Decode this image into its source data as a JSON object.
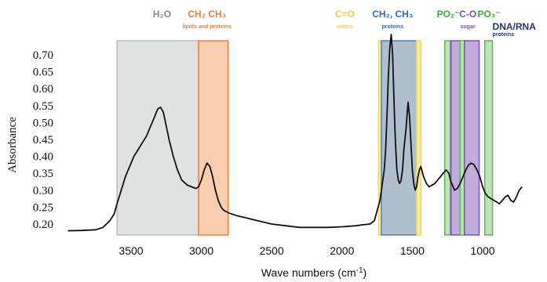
{
  "chart_data": {
    "type": "line",
    "title": "",
    "xlabel": "Wave numbers  (cm",
    "xlabel_sup": "-1",
    "xlabel_suffix": ")",
    "ylabel": "Absorbance",
    "xlim": [
      4000,
      700
    ],
    "ylim": [
      0.17,
      0.74
    ],
    "x_ticks": [
      3500,
      3000,
      2500,
      2000,
      1500,
      1000
    ],
    "y_ticks": [
      0.2,
      0.25,
      0.3,
      0.35,
      0.4,
      0.45,
      0.5,
      0.55,
      0.6,
      0.65,
      0.7
    ],
    "grid": false,
    "series": [
      {
        "x": [
          3950,
          3850,
          3750,
          3700,
          3650,
          3620,
          3600,
          3570,
          3540,
          3510,
          3480,
          3450,
          3420,
          3390,
          3360,
          3330,
          3310,
          3290,
          3270,
          3250,
          3230,
          3200,
          3170,
          3140,
          3100,
          3070,
          3040,
          3020,
          3000,
          2980,
          2960,
          2940,
          2920,
          2900,
          2880,
          2860,
          2840,
          2800,
          2750,
          2700,
          2600,
          2500,
          2400,
          2300,
          2200,
          2100,
          2000,
          1900,
          1850,
          1800,
          1770,
          1750,
          1730,
          1720,
          1710,
          1700,
          1690,
          1680,
          1670,
          1660,
          1650,
          1640,
          1630,
          1620,
          1610,
          1600,
          1590,
          1580,
          1570,
          1560,
          1545,
          1530,
          1520,
          1510,
          1500,
          1490,
          1480,
          1470,
          1460,
          1450,
          1440,
          1420,
          1400,
          1380,
          1360,
          1340,
          1320,
          1300,
          1280,
          1260,
          1240,
          1230,
          1220,
          1210,
          1200,
          1180,
          1160,
          1140,
          1120,
          1100,
          1080,
          1060,
          1040,
          1020,
          1000,
          980,
          960,
          940,
          920,
          900,
          880,
          860,
          840,
          820,
          800,
          780,
          760,
          740,
          720
        ],
        "y": [
          0.18,
          0.181,
          0.183,
          0.19,
          0.21,
          0.23,
          0.26,
          0.3,
          0.34,
          0.37,
          0.4,
          0.42,
          0.44,
          0.46,
          0.49,
          0.52,
          0.54,
          0.545,
          0.53,
          0.49,
          0.45,
          0.4,
          0.36,
          0.33,
          0.315,
          0.31,
          0.305,
          0.31,
          0.33,
          0.36,
          0.38,
          0.37,
          0.34,
          0.3,
          0.27,
          0.25,
          0.24,
          0.232,
          0.225,
          0.22,
          0.21,
          0.2,
          0.195,
          0.19,
          0.19,
          0.19,
          0.192,
          0.195,
          0.198,
          0.2,
          0.21,
          0.24,
          0.27,
          0.3,
          0.33,
          0.36,
          0.42,
          0.52,
          0.64,
          0.72,
          0.76,
          0.7,
          0.56,
          0.44,
          0.36,
          0.33,
          0.32,
          0.33,
          0.36,
          0.42,
          0.48,
          0.56,
          0.52,
          0.44,
          0.36,
          0.32,
          0.3,
          0.31,
          0.34,
          0.36,
          0.37,
          0.34,
          0.32,
          0.31,
          0.315,
          0.32,
          0.33,
          0.34,
          0.35,
          0.36,
          0.35,
          0.33,
          0.32,
          0.31,
          0.3,
          0.305,
          0.32,
          0.34,
          0.36,
          0.375,
          0.38,
          0.375,
          0.36,
          0.34,
          0.31,
          0.29,
          0.28,
          0.275,
          0.27,
          0.265,
          0.26,
          0.27,
          0.28,
          0.285,
          0.27,
          0.265,
          0.28,
          0.3,
          0.31
        ]
      }
    ],
    "bands": [
      {
        "from": 3600,
        "to": 3020,
        "color": "#dcdfdd",
        "border": "#b8bcba"
      },
      {
        "from": 3020,
        "to": 2810,
        "color": "#f9c8a6",
        "border": "#ef7e3c"
      },
      {
        "from": 1740,
        "to": 1720,
        "color": "#f6eca0",
        "border": "#ecd66a"
      },
      {
        "from": 1720,
        "to": 1470,
        "color": "#a6b8c8",
        "border": "#4f7fb8"
      },
      {
        "from": 1470,
        "to": 1440,
        "color": "#f6eca0",
        "border": "#ecd66a"
      },
      {
        "from": 1270,
        "to": 1230,
        "color": "#b8dfb0",
        "border": "#5fb858"
      },
      {
        "from": 1225,
        "to": 1160,
        "color": "#b9a4d6",
        "border": "#7e52b8"
      },
      {
        "from": 1160,
        "to": 1130,
        "color": "#b8dfb0",
        "border": "#5fb858"
      },
      {
        "from": 1130,
        "to": 1025,
        "color": "#b9a4d6",
        "border": "#7e52b8"
      },
      {
        "from": 985,
        "to": 930,
        "color": "#b8dfb0",
        "border": "#5fb858"
      }
    ],
    "annotations": [
      {
        "text": "H₂O",
        "sub": "",
        "color": "#8a8a8a",
        "x": 3280,
        "align": "middle"
      },
      {
        "text": "CH₂ CH₃",
        "sub": "lipids and proteins",
        "color": "#ef7e3c",
        "x": 2960,
        "align": "middle"
      },
      {
        "text": "C=O",
        "sub": "esters",
        "color": "#f5c84c",
        "x": 1980,
        "align": "middle"
      },
      {
        "text": "CH₂, CH₃",
        "sub": "proteins",
        "color": "#2d6bc4",
        "x": 1640,
        "align": "middle"
      },
      {
        "text": "PO₂⁻",
        "sub": "",
        "color": "#3aa83a",
        "x": 1245,
        "align": "middle"
      },
      {
        "text": "C-O",
        "sub": "sugar",
        "color": "#7e52b8",
        "x": 1105,
        "align": "middle"
      },
      {
        "text": "PO₃⁻",
        "sub": "",
        "color": "#3aa83a",
        "x": 955,
        "align": "middle"
      },
      {
        "text": "DNA/RNA",
        "sub": "proteins",
        "color": "#1e3a6e",
        "x": 930,
        "align": "start"
      }
    ]
  }
}
